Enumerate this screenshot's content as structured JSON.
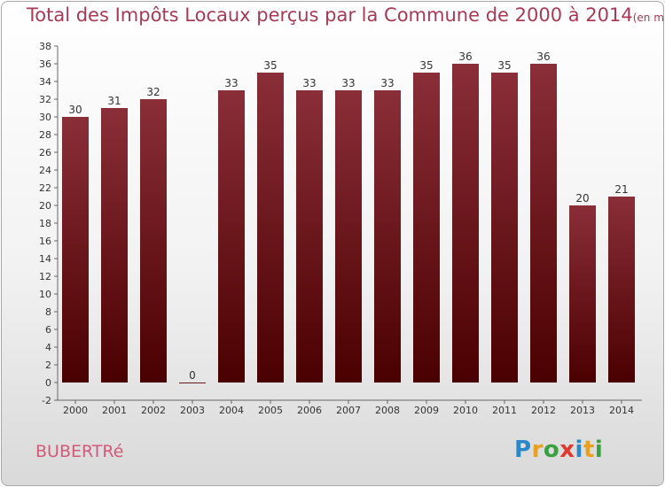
{
  "title": "Total des Impôts Locaux perçus par la Commune de 2000 à 2014",
  "title_unit": "(en milliers d'€)",
  "commune": "BUBERTRé",
  "logo": {
    "letters": [
      "P",
      "r",
      "o",
      "x",
      "i",
      "t",
      "i"
    ],
    "colors": [
      "#2a88c8",
      "#e8a020",
      "#3aa040",
      "#e03a30",
      "#2a88c8",
      "#e8a020",
      "#3aa040"
    ]
  },
  "colors": {
    "bar_top": "#8a2e38",
    "bar_bottom": "#4a0000",
    "title": "#a83a55",
    "commune": "#d25a7a"
  },
  "chart_data": {
    "type": "bar",
    "categories": [
      "2000",
      "2001",
      "2002",
      "2003",
      "2004",
      "2005",
      "2006",
      "2007",
      "2008",
      "2009",
      "2010",
      "2011",
      "2012",
      "2013",
      "2014"
    ],
    "values": [
      30,
      31,
      32,
      0,
      33,
      35,
      33,
      33,
      33,
      35,
      36,
      35,
      36,
      20,
      21
    ],
    "ylim": [
      -2,
      38
    ],
    "yticks": [
      -2,
      0,
      2,
      4,
      6,
      8,
      10,
      12,
      14,
      16,
      18,
      20,
      22,
      24,
      26,
      28,
      30,
      32,
      34,
      36,
      38
    ],
    "grid": false
  }
}
